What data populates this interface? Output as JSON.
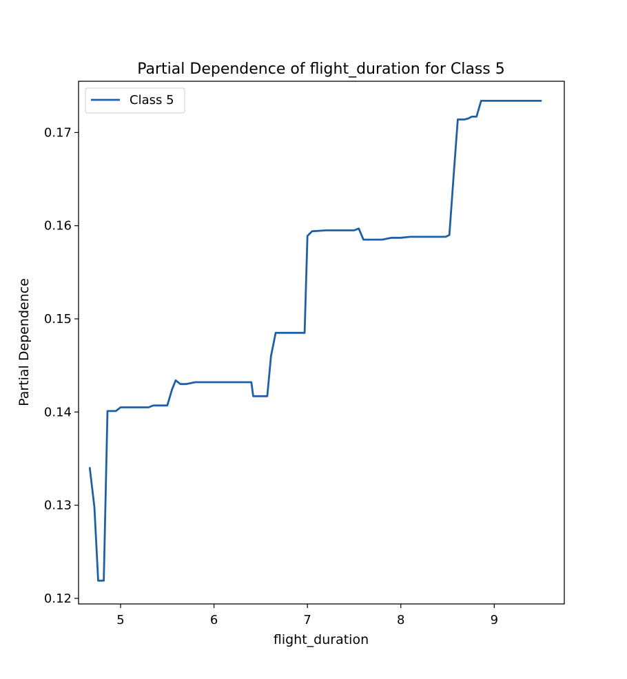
{
  "chart_data": {
    "type": "line",
    "title": "Partial Dependence of flight_duration for Class 5",
    "xlabel": "flight_duration",
    "ylabel": "Partial Dependence",
    "xlim": [
      4.55,
      9.75
    ],
    "ylim": [
      0.1194,
      0.1755
    ],
    "xticks": [
      5,
      6,
      7,
      8,
      9
    ],
    "yticks": [
      0.12,
      0.13,
      0.14,
      0.15,
      0.16,
      0.17
    ],
    "xtick_labels": [
      "5",
      "6",
      "7",
      "8",
      "9"
    ],
    "ytick_labels": [
      "0.12",
      "0.13",
      "0.14",
      "0.15",
      "0.16",
      "0.17"
    ],
    "grid": false,
    "legend": "upper-left",
    "series": [
      {
        "name": "Class 5",
        "color": "#1f5fa6",
        "x": [
          4.67,
          4.72,
          4.76,
          4.82,
          4.86,
          4.95,
          5.0,
          5.1,
          5.2,
          5.3,
          5.35,
          5.45,
          5.5,
          5.55,
          5.59,
          5.64,
          5.7,
          5.8,
          6.0,
          6.2,
          6.4,
          6.42,
          6.5,
          6.57,
          6.61,
          6.66,
          6.7,
          6.9,
          6.97,
          7.0,
          7.05,
          7.2,
          7.4,
          7.5,
          7.55,
          7.6,
          7.7,
          7.8,
          7.9,
          8.0,
          8.1,
          8.2,
          8.3,
          8.4,
          8.48,
          8.52,
          8.57,
          8.61,
          8.68,
          8.72,
          8.76,
          8.81,
          8.86,
          9.0,
          9.2,
          9.4,
          9.5
        ],
        "y": [
          0.134,
          0.1298,
          0.1219,
          0.1219,
          0.1401,
          0.1401,
          0.1405,
          0.1405,
          0.1405,
          0.1405,
          0.1407,
          0.1407,
          0.1407,
          0.1424,
          0.1434,
          0.143,
          0.143,
          0.1432,
          0.1432,
          0.1432,
          0.1432,
          0.1417,
          0.1417,
          0.1417,
          0.146,
          0.1485,
          0.1485,
          0.1485,
          0.1485,
          0.1589,
          0.1594,
          0.1595,
          0.1595,
          0.1595,
          0.1597,
          0.1585,
          0.1585,
          0.1585,
          0.1587,
          0.1587,
          0.1588,
          0.1588,
          0.1588,
          0.1588,
          0.1588,
          0.159,
          0.166,
          0.1714,
          0.1714,
          0.1715,
          0.1717,
          0.1717,
          0.1734,
          0.1734,
          0.1734,
          0.1734,
          0.1734
        ]
      }
    ]
  }
}
